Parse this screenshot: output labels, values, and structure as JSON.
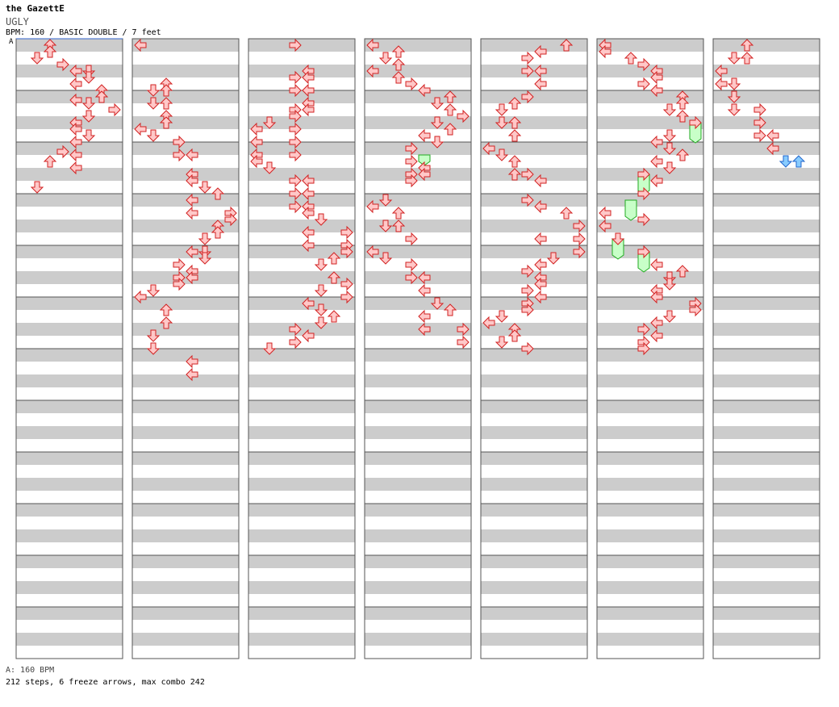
{
  "header": {
    "artist": "the GazettE",
    "title": "UGLY",
    "meta": "BPM: 160 / BASIC DOUBLE / 7 feet",
    "bpm_marker": "A"
  },
  "footer": {
    "bpm_note": "A: 160 BPM",
    "summary": "212 steps, 6 freeze arrows, max combo 242"
  },
  "colors": {
    "stripe": "#cccccc",
    "border": "#555555",
    "arrow_fill": "#ffc8c8",
    "arrow_stroke": "#d22222",
    "freeze_fill": "#c8ffc8",
    "freeze_stroke": "#22aa22",
    "shock_fill": "#88ccff",
    "shock_stroke": "#2266cc",
    "bpm_line": "#3366cc"
  },
  "chart_data": {
    "type": "step-chart",
    "mode": "BASIC DOUBLE",
    "bpm": 160,
    "difficulty": "7 feet",
    "panels": [
      "L",
      "D",
      "U",
      "R",
      "L",
      "D",
      "U",
      "R"
    ],
    "measures_per_column": 12,
    "columns": 7,
    "beats_per_measure": 4,
    "notes": [
      [
        [
          2,
          0.0
        ],
        [
          2,
          0.5
        ],
        [
          1,
          1.0
        ],
        [
          3,
          1.5
        ],
        [
          4,
          2.0
        ],
        [
          5,
          2.0
        ],
        [
          5,
          2.5
        ],
        [
          4,
          3.0
        ],
        [
          6,
          3.5
        ],
        [
          6,
          4.0
        ],
        [
          4,
          4.25
        ],
        [
          5,
          4.5
        ],
        [
          7,
          5.0
        ],
        [
          5,
          5.5
        ],
        [
          4,
          6.0
        ],
        [
          4,
          6.5
        ],
        [
          5,
          7.0
        ],
        [
          4,
          7.5
        ],
        [
          3,
          8.25
        ],
        [
          4,
          8.5
        ],
        [
          2,
          9.0
        ],
        [
          4,
          9.5
        ],
        [
          1,
          11.0
        ]
      ],
      [
        [
          0,
          0.0
        ],
        [
          2,
          3.0
        ],
        [
          1,
          3.5
        ],
        [
          2,
          3.5
        ],
        [
          1,
          4.5
        ],
        [
          2,
          4.5
        ],
        [
          2,
          5.5
        ],
        [
          2,
          6.0
        ],
        [
          0,
          6.5
        ],
        [
          1,
          7.0
        ],
        [
          3,
          7.5
        ],
        [
          3,
          8.5
        ],
        [
          4,
          8.5
        ],
        [
          4,
          10.0
        ],
        [
          4,
          10.5
        ],
        [
          5,
          11.0
        ],
        [
          6,
          11.5
        ],
        [
          4,
          12.0
        ],
        [
          4,
          13.0
        ],
        [
          7,
          13.0
        ],
        [
          7,
          13.5
        ],
        [
          6,
          14.0
        ],
        [
          6,
          14.5
        ],
        [
          5,
          15.0
        ],
        [
          4,
          16.0
        ],
        [
          5,
          16.0
        ],
        [
          5,
          16.5
        ],
        [
          3,
          17.0
        ],
        [
          4,
          17.5
        ],
        [
          3,
          18.0
        ],
        [
          4,
          18.0
        ],
        [
          3,
          18.5
        ],
        [
          1,
          19.0
        ],
        [
          0,
          19.5
        ],
        [
          2,
          20.5
        ],
        [
          2,
          21.5
        ],
        [
          1,
          22.5
        ],
        [
          1,
          23.5
        ],
        [
          4,
          24.5
        ],
        [
          4,
          25.5
        ]
      ],
      [
        [
          3,
          0.0
        ],
        [
          4,
          2.0
        ],
        [
          3,
          2.5
        ],
        [
          4,
          2.5
        ],
        [
          3,
          3.5
        ],
        [
          4,
          3.5
        ],
        [
          4,
          4.5
        ],
        [
          3,
          5.0
        ],
        [
          4,
          5.0
        ],
        [
          3,
          5.5
        ],
        [
          1,
          6.0
        ],
        [
          0,
          6.5
        ],
        [
          3,
          6.5
        ],
        [
          0,
          7.5
        ],
        [
          3,
          7.5
        ],
        [
          0,
          8.5
        ],
        [
          3,
          8.5
        ],
        [
          0,
          9.0
        ],
        [
          1,
          9.5
        ],
        [
          3,
          10.5
        ],
        [
          4,
          10.5
        ],
        [
          3,
          11.5
        ],
        [
          4,
          11.5
        ],
        [
          3,
          12.5
        ],
        [
          4,
          12.5
        ],
        [
          4,
          13.0
        ],
        [
          5,
          13.5
        ],
        [
          4,
          14.5
        ],
        [
          7,
          14.5
        ],
        [
          4,
          15.5
        ],
        [
          7,
          15.5
        ],
        [
          7,
          16.0
        ],
        [
          6,
          16.5
        ],
        [
          5,
          17.0
        ],
        [
          6,
          18.0
        ],
        [
          7,
          18.5
        ],
        [
          5,
          19.0
        ],
        [
          7,
          19.5
        ],
        [
          4,
          20.0
        ],
        [
          5,
          20.5
        ],
        [
          6,
          21.0
        ],
        [
          5,
          21.5
        ],
        [
          3,
          22.0
        ],
        [
          4,
          22.5
        ],
        [
          3,
          23.0
        ],
        [
          1,
          23.5
        ]
      ],
      [
        [
          0,
          0.0
        ],
        [
          2,
          0.5
        ],
        [
          1,
          1.0
        ],
        [
          2,
          1.5
        ],
        [
          0,
          2.0
        ],
        [
          2,
          2.5
        ],
        [
          3,
          3.0
        ],
        [
          4,
          3.5
        ],
        [
          6,
          4.0
        ],
        [
          5,
          4.5
        ],
        [
          6,
          5.0
        ],
        [
          7,
          5.5
        ],
        [
          5,
          6.0
        ],
        [
          6,
          6.5
        ],
        [
          4,
          7.0
        ],
        [
          5,
          7.5
        ],
        [
          3,
          8.0
        ],
        [
          3,
          9.0
        ],
        [
          4,
          9.5
        ],
        [
          3,
          10.0
        ],
        [
          4,
          10.0
        ],
        [
          3,
          10.5
        ],
        [
          1,
          12.0
        ],
        [
          0,
          12.5
        ],
        [
          2,
          13.0
        ],
        [
          1,
          14.0
        ],
        [
          2,
          14.0
        ],
        [
          3,
          15.0
        ],
        [
          0,
          16.0
        ],
        [
          1,
          16.5
        ],
        [
          3,
          17.0
        ],
        [
          3,
          18.0
        ],
        [
          4,
          18.0
        ],
        [
          4,
          19.0
        ],
        [
          5,
          20.0
        ],
        [
          6,
          20.5
        ],
        [
          4,
          21.0
        ],
        [
          4,
          22.0
        ],
        [
          7,
          22.0
        ],
        [
          7,
          23.0
        ]
      ],
      [
        [
          6,
          0.0
        ],
        [
          4,
          0.5
        ],
        [
          3,
          1.0
        ],
        [
          3,
          2.0
        ],
        [
          4,
          2.0
        ],
        [
          4,
          3.0
        ],
        [
          3,
          4.0
        ],
        [
          2,
          4.5
        ],
        [
          1,
          5.0
        ],
        [
          1,
          6.0
        ],
        [
          2,
          6.0
        ],
        [
          2,
          7.0
        ],
        [
          0,
          8.0
        ],
        [
          1,
          8.5
        ],
        [
          2,
          9.0
        ],
        [
          2,
          10.0
        ],
        [
          3,
          10.0
        ],
        [
          4,
          10.5
        ],
        [
          3,
          12.0
        ],
        [
          4,
          12.5
        ],
        [
          6,
          13.0
        ],
        [
          7,
          14.0
        ],
        [
          4,
          15.0
        ],
        [
          7,
          15.0
        ],
        [
          7,
          16.0
        ],
        [
          5,
          16.5
        ],
        [
          4,
          17.0
        ],
        [
          3,
          17.5
        ],
        [
          4,
          18.0
        ],
        [
          4,
          18.5
        ],
        [
          3,
          19.0
        ],
        [
          4,
          19.5
        ],
        [
          3,
          20.0
        ],
        [
          3,
          20.5
        ],
        [
          1,
          21.0
        ],
        [
          0,
          21.5
        ],
        [
          2,
          22.0
        ],
        [
          2,
          22.5
        ],
        [
          1,
          23.0
        ],
        [
          3,
          23.5
        ]
      ],
      [
        [
          0,
          0.0
        ],
        [
          0,
          0.5
        ],
        [
          2,
          1.0
        ],
        [
          3,
          1.5
        ],
        [
          4,
          2.0
        ],
        [
          4,
          2.5
        ],
        [
          3,
          3.0
        ],
        [
          4,
          3.5
        ],
        [
          6,
          4.0
        ],
        [
          6,
          4.5
        ],
        [
          5,
          5.0
        ],
        [
          6,
          5.5
        ],
        [
          7,
          6.0
        ],
        [
          5,
          7.0
        ],
        [
          4,
          7.5
        ],
        [
          5,
          8.0
        ],
        [
          6,
          8.5
        ],
        [
          4,
          9.0
        ],
        [
          5,
          9.5
        ],
        [
          3,
          10.0
        ],
        [
          4,
          10.5
        ],
        [
          3,
          11.5
        ],
        [
          0,
          13.0
        ],
        [
          3,
          13.5
        ],
        [
          0,
          14.0
        ],
        [
          1,
          15.0
        ],
        [
          3,
          16.0
        ],
        [
          4,
          17.0
        ],
        [
          6,
          17.5
        ],
        [
          5,
          18.0
        ],
        [
          5,
          18.5
        ],
        [
          4,
          19.0
        ],
        [
          4,
          19.5
        ],
        [
          7,
          20.0
        ],
        [
          7,
          20.5
        ],
        [
          5,
          21.0
        ],
        [
          4,
          21.5
        ],
        [
          3,
          22.0
        ],
        [
          4,
          22.5
        ],
        [
          3,
          23.0
        ],
        [
          3,
          23.5
        ]
      ],
      [
        [
          2,
          0.0
        ],
        [
          1,
          1.0
        ],
        [
          2,
          1.0
        ],
        [
          0,
          2.0
        ],
        [
          0,
          3.0
        ],
        [
          1,
          3.0
        ],
        [
          1,
          4.0
        ],
        [
          1,
          5.0
        ],
        [
          3,
          5.0
        ],
        [
          3,
          6.0
        ],
        [
          3,
          7.0
        ],
        [
          4,
          7.0
        ],
        [
          4,
          8.0
        ]
      ]
    ],
    "freeze_arrows": [
      {
        "column": 3,
        "panel": 4,
        "start_beat": 8.5,
        "end_beat": 9.0
      },
      {
        "column": 5,
        "panel": 7,
        "start_beat": 6.0,
        "end_beat": 7.25
      },
      {
        "column": 5,
        "panel": 3,
        "start_beat": 10.0,
        "end_beat": 11.25
      },
      {
        "column": 5,
        "panel": 2,
        "start_beat": 12.0,
        "end_beat": 13.25
      },
      {
        "column": 5,
        "panel": 1,
        "start_beat": 15.0,
        "end_beat": 16.25
      },
      {
        "column": 5,
        "panel": 3,
        "start_beat": 16.0,
        "end_beat": 17.25
      }
    ],
    "shock_arrows": [
      {
        "column": 6,
        "panel": 5,
        "beat": 9.0
      },
      {
        "column": 6,
        "panel": 6,
        "beat": 9.0
      }
    ]
  }
}
